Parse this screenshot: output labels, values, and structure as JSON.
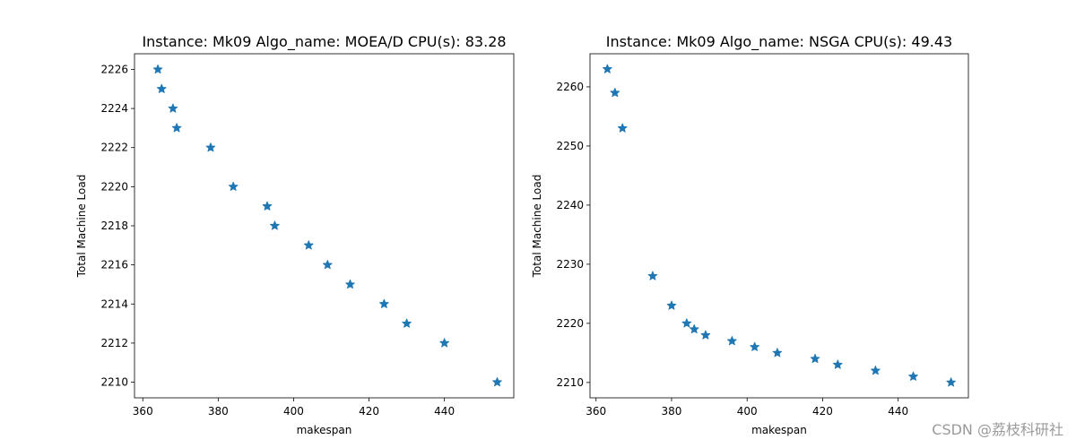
{
  "chart_data": [
    {
      "type": "scatter",
      "title": "Instance: Mk09 Algo_name: MOEA/D CPU(s): 83.28",
      "xlabel": "makespan",
      "ylabel": "Total Machine Load",
      "xlim": [
        357.8,
        458.4
      ],
      "ylim": [
        2209.2,
        2226.8
      ],
      "xticks": [
        360,
        380,
        400,
        420,
        440
      ],
      "yticks": [
        2210,
        2212,
        2214,
        2216,
        2218,
        2220,
        2222,
        2224,
        2226
      ],
      "marker": "*",
      "color": "#1f77b4",
      "x": [
        364,
        365,
        368,
        369,
        378,
        384,
        393,
        395,
        404,
        409,
        415,
        424,
        430,
        440,
        454
      ],
      "y": [
        2226,
        2225,
        2224,
        2223,
        2222,
        2220,
        2219,
        2218,
        2217,
        2216,
        2215,
        2214,
        2213,
        2212,
        2210
      ]
    },
    {
      "type": "scatter",
      "title": "Instance: Mk09 Algo_name: NSGA CPU(s): 49.43",
      "xlabel": "makespan",
      "ylabel": "Total Machine Load",
      "xlim": [
        358.4,
        458.6
      ],
      "ylim": [
        2207.4,
        2265.6
      ],
      "xticks": [
        360,
        380,
        400,
        420,
        440
      ],
      "yticks": [
        2210,
        2220,
        2230,
        2240,
        2250,
        2260
      ],
      "marker": "*",
      "color": "#1f77b4",
      "x": [
        363,
        365,
        367,
        375,
        380,
        384,
        386,
        389,
        396,
        402,
        408,
        418,
        424,
        434,
        444,
        454
      ],
      "y": [
        2263,
        2259,
        2253,
        2228,
        2223,
        2220,
        2219,
        2218,
        2217,
        2216,
        2215,
        2214,
        2213,
        2212,
        2211,
        2210
      ]
    }
  ],
  "watermark": "CSDN @荔枝科研社"
}
